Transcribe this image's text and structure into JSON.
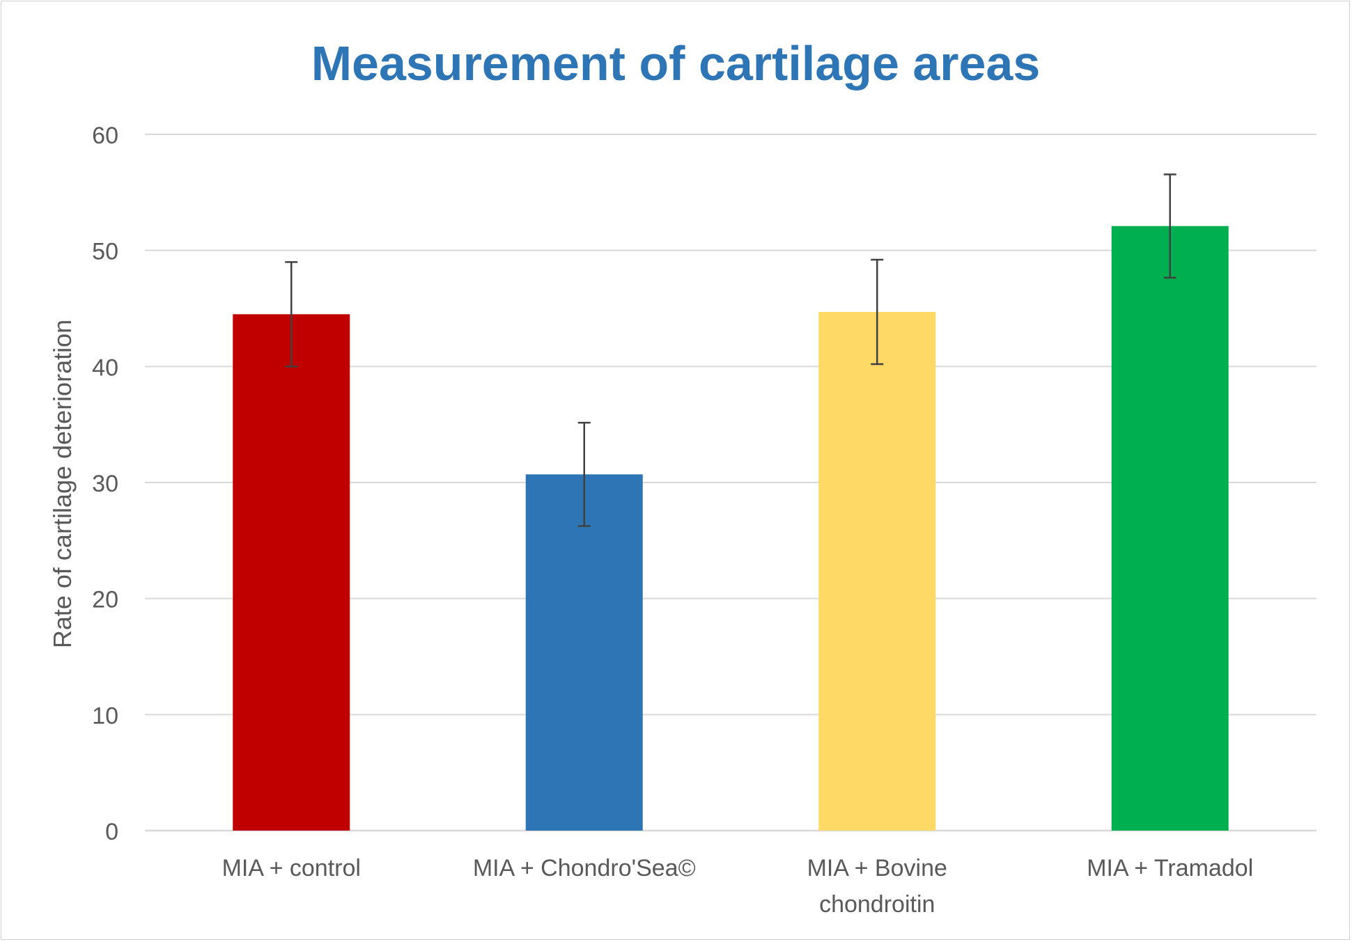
{
  "chart_data": {
    "type": "bar",
    "title": "Measurement of cartilage areas",
    "xlabel": "",
    "ylabel": "Rate of cartilage deterioration",
    "ylim": [
      0,
      60
    ],
    "yticks": [
      0,
      10,
      20,
      30,
      40,
      50,
      60
    ],
    "grid": true,
    "legend": "none",
    "categories": [
      [
        "MIA + control"
      ],
      [
        "MIA + Chondro'Sea©"
      ],
      [
        "MIA + Bovine",
        "chondroitin"
      ],
      [
        "MIA + Tramadol"
      ]
    ],
    "values": [
      44.5,
      30.7,
      44.7,
      52.1
    ],
    "error": [
      4.5,
      4.45,
      4.5,
      4.45
    ],
    "colors": [
      "#c00000",
      "#2e75b6",
      "#ffd966",
      "#00b050"
    ]
  }
}
